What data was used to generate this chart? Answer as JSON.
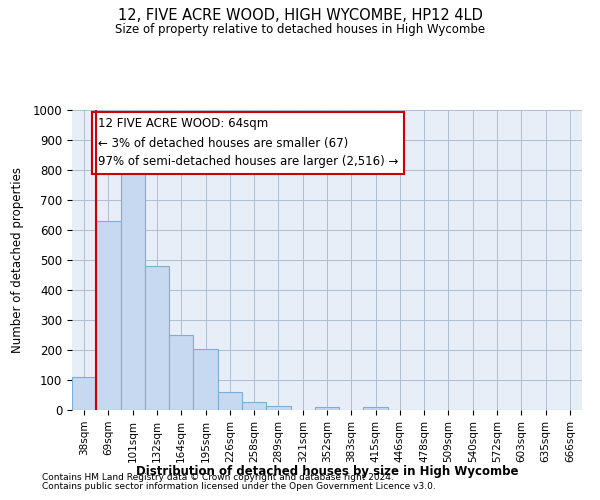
{
  "title1": "12, FIVE ACRE WOOD, HIGH WYCOMBE, HP12 4LD",
  "title2": "Size of property relative to detached houses in High Wycombe",
  "xlabel": "Distribution of detached houses by size in High Wycombe",
  "ylabel": "Number of detached properties",
  "footnote1": "Contains HM Land Registry data © Crown copyright and database right 2024.",
  "footnote2": "Contains public sector information licensed under the Open Government Licence v3.0.",
  "annotation_line1": "12 FIVE ACRE WOOD: 64sqm",
  "annotation_line2": "← 3% of detached houses are smaller (67)",
  "annotation_line3": "97% of semi-detached houses are larger (2,516) →",
  "bar_labels": [
    "38sqm",
    "69sqm",
    "101sqm",
    "132sqm",
    "164sqm",
    "195sqm",
    "226sqm",
    "258sqm",
    "289sqm",
    "321sqm",
    "352sqm",
    "383sqm",
    "415sqm",
    "446sqm",
    "478sqm",
    "509sqm",
    "540sqm",
    "572sqm",
    "603sqm",
    "635sqm",
    "666sqm"
  ],
  "bar_values": [
    110,
    630,
    800,
    480,
    250,
    205,
    60,
    28,
    15,
    0,
    10,
    0,
    10,
    0,
    0,
    0,
    0,
    0,
    0,
    0,
    0
  ],
  "bar_color": "#c6d9f0",
  "bar_edge_color": "#7bafd4",
  "ylim": [
    0,
    1000
  ],
  "yticks": [
    0,
    100,
    200,
    300,
    400,
    500,
    600,
    700,
    800,
    900,
    1000
  ],
  "background_color": "#ffffff",
  "plot_bg_color": "#e8eef7",
  "grid_color": "#b0bfd0",
  "annotation_box_color": "#cc0000",
  "redline_color": "#cc0000"
}
